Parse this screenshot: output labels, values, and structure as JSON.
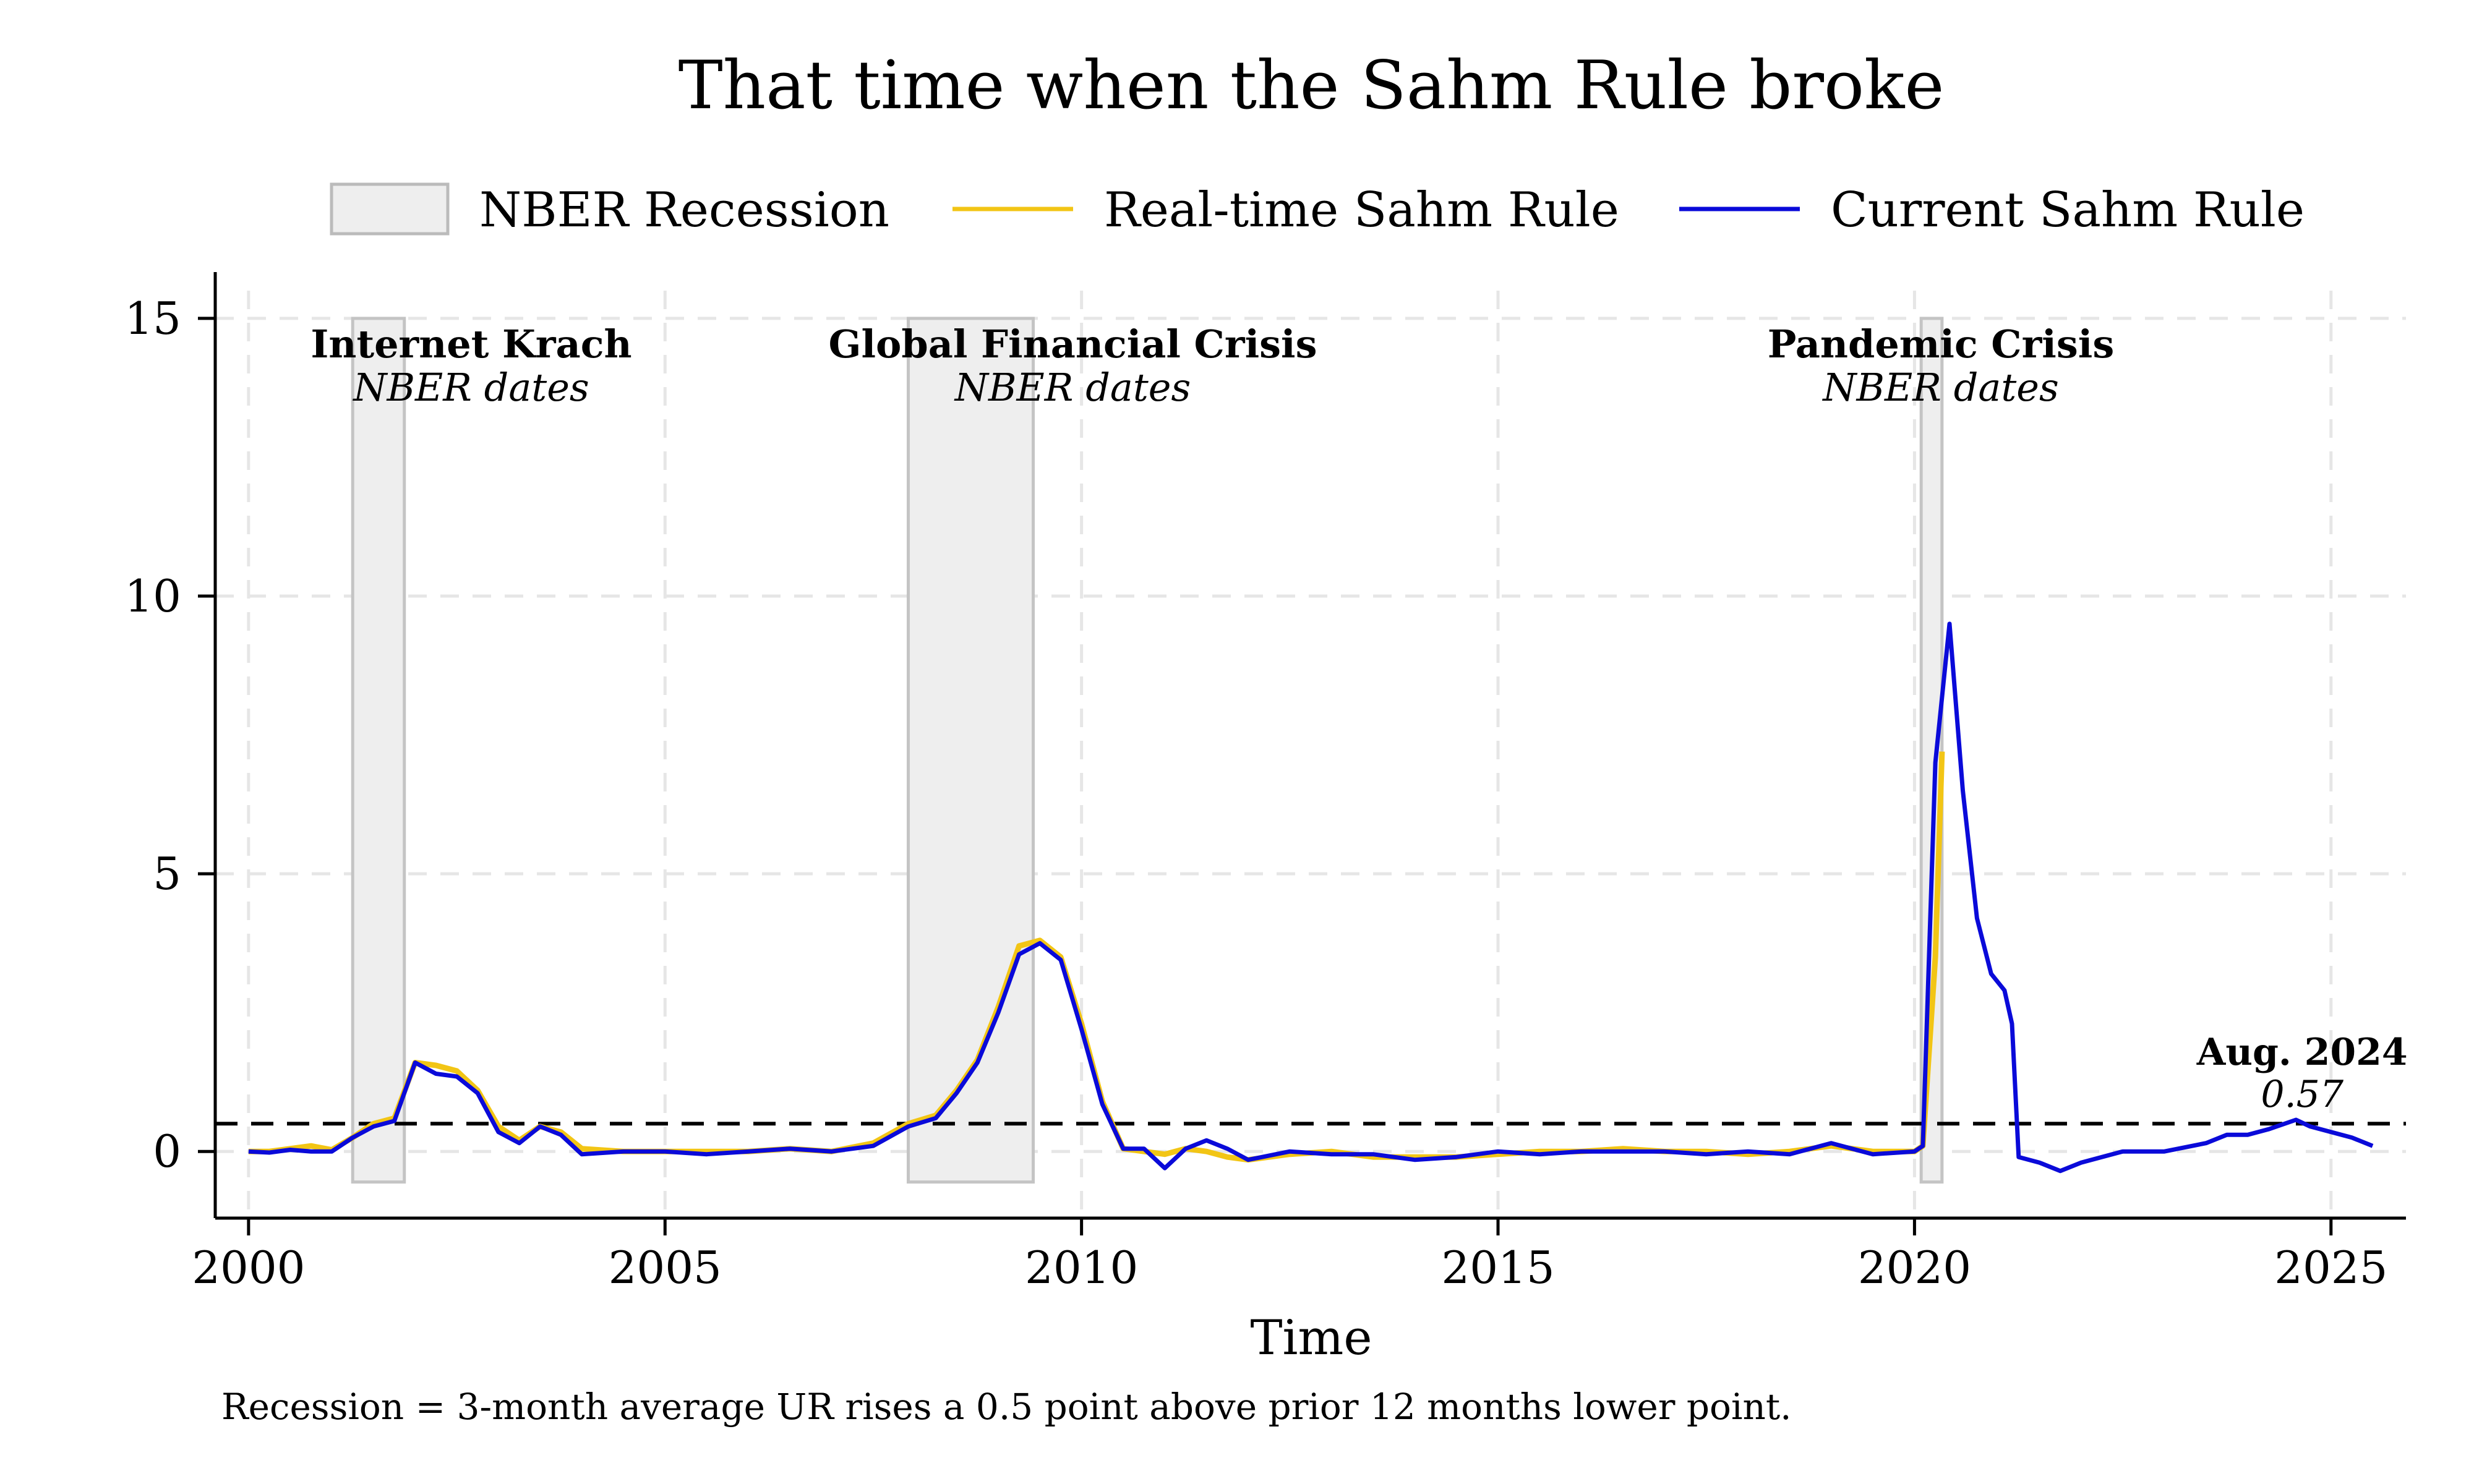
{
  "chart_data": {
    "type": "line",
    "title": "That time when the Sahm Rule broke",
    "xlabel": "Time",
    "ylabel": "",
    "xlim": [
      1999.6,
      2025.9
    ],
    "ylim": [
      -1.2,
      15.5
    ],
    "x_ticks": [
      2000,
      2005,
      2010,
      2015,
      2020,
      2025
    ],
    "y_ticks": [
      0,
      5,
      10,
      15
    ],
    "grid": true,
    "legend": {
      "placement": "top",
      "items": [
        {
          "label": "NBER Recession",
          "kind": "box",
          "color": "#eeeeee",
          "stroke": "#bbbbbb"
        },
        {
          "label": "Real-time Sahm Rule",
          "kind": "line",
          "color": "#f2c515"
        },
        {
          "label": "Current Sahm Rule",
          "kind": "line",
          "color": "#0a0ad9"
        }
      ]
    },
    "threshold": 0.5,
    "recessions": [
      {
        "start": 2001.25,
        "end": 2001.87,
        "name": "Internet Krach",
        "sub": "NBER dates"
      },
      {
        "start": 2007.92,
        "end": 2009.42,
        "name": "Global Financial Crisis",
        "sub": "NBER dates"
      },
      {
        "start": 2020.08,
        "end": 2020.33,
        "name": "Pandemic Crisis",
        "sub": "NBER dates"
      }
    ],
    "annotation": {
      "label": "Aug. 2024",
      "value": "0.57",
      "x": 2024.58,
      "y": 0.57
    },
    "series": [
      {
        "name": "Real-time Sahm Rule",
        "color": "#f2c515",
        "points": [
          [
            2000.0,
            0.0
          ],
          [
            2000.25,
            0.0
          ],
          [
            2000.5,
            0.05
          ],
          [
            2000.75,
            0.1
          ],
          [
            2001.0,
            0.03
          ],
          [
            2001.25,
            0.25
          ],
          [
            2001.5,
            0.5
          ],
          [
            2001.75,
            0.6
          ],
          [
            2002.0,
            1.6
          ],
          [
            2002.25,
            1.55
          ],
          [
            2002.5,
            1.45
          ],
          [
            2002.75,
            1.1
          ],
          [
            2003.0,
            0.45
          ],
          [
            2003.25,
            0.2
          ],
          [
            2003.5,
            0.45
          ],
          [
            2003.75,
            0.35
          ],
          [
            2004.0,
            0.05
          ],
          [
            2004.5,
            0.0
          ],
          [
            2005.0,
            0.0
          ],
          [
            2005.5,
            0.0
          ],
          [
            2006.0,
            0.0
          ],
          [
            2006.5,
            0.05
          ],
          [
            2007.0,
            0.0
          ],
          [
            2007.5,
            0.15
          ],
          [
            2007.92,
            0.5
          ],
          [
            2008.25,
            0.65
          ],
          [
            2008.5,
            1.1
          ],
          [
            2008.75,
            1.65
          ],
          [
            2009.0,
            2.6
          ],
          [
            2009.25,
            3.7
          ],
          [
            2009.5,
            3.8
          ],
          [
            2009.75,
            3.5
          ],
          [
            2010.0,
            2.3
          ],
          [
            2010.25,
            0.9
          ],
          [
            2010.5,
            0.05
          ],
          [
            2010.75,
            0.0
          ],
          [
            2011.0,
            -0.05
          ],
          [
            2011.25,
            0.05
          ],
          [
            2011.5,
            0.0
          ],
          [
            2011.75,
            -0.1
          ],
          [
            2012.0,
            -0.15
          ],
          [
            2012.5,
            -0.05
          ],
          [
            2013.0,
            0.0
          ],
          [
            2013.5,
            -0.1
          ],
          [
            2014.0,
            -0.1
          ],
          [
            2014.5,
            -0.1
          ],
          [
            2015.0,
            -0.05
          ],
          [
            2015.5,
            0.0
          ],
          [
            2016.0,
            0.0
          ],
          [
            2016.5,
            0.05
          ],
          [
            2017.0,
            0.0
          ],
          [
            2017.5,
            0.0
          ],
          [
            2018.0,
            -0.05
          ],
          [
            2018.5,
            0.0
          ],
          [
            2019.0,
            0.1
          ],
          [
            2019.5,
            0.0
          ],
          [
            2020.0,
            0.0
          ],
          [
            2020.1,
            0.1
          ],
          [
            2020.25,
            3.5
          ],
          [
            2020.33,
            7.2
          ]
        ]
      },
      {
        "name": "Current Sahm Rule",
        "color": "#0a0ad9",
        "points": [
          [
            2000.0,
            0.0
          ],
          [
            2000.25,
            -0.02
          ],
          [
            2000.5,
            0.03
          ],
          [
            2000.75,
            0.0
          ],
          [
            2001.0,
            0.0
          ],
          [
            2001.25,
            0.25
          ],
          [
            2001.5,
            0.45
          ],
          [
            2001.75,
            0.55
          ],
          [
            2002.0,
            1.6
          ],
          [
            2002.25,
            1.4
          ],
          [
            2002.5,
            1.35
          ],
          [
            2002.75,
            1.05
          ],
          [
            2003.0,
            0.35
          ],
          [
            2003.25,
            0.15
          ],
          [
            2003.5,
            0.45
          ],
          [
            2003.75,
            0.3
          ],
          [
            2004.0,
            -0.05
          ],
          [
            2004.5,
            0.0
          ],
          [
            2005.0,
            0.0
          ],
          [
            2005.5,
            -0.05
          ],
          [
            2006.0,
            0.0
          ],
          [
            2006.5,
            0.05
          ],
          [
            2007.0,
            0.0
          ],
          [
            2007.5,
            0.1
          ],
          [
            2007.92,
            0.45
          ],
          [
            2008.25,
            0.6
          ],
          [
            2008.5,
            1.05
          ],
          [
            2008.75,
            1.6
          ],
          [
            2009.0,
            2.5
          ],
          [
            2009.25,
            3.55
          ],
          [
            2009.5,
            3.75
          ],
          [
            2009.75,
            3.45
          ],
          [
            2010.0,
            2.2
          ],
          [
            2010.25,
            0.85
          ],
          [
            2010.5,
            0.05
          ],
          [
            2010.75,
            0.05
          ],
          [
            2011.0,
            -0.3
          ],
          [
            2011.25,
            0.05
          ],
          [
            2011.5,
            0.2
          ],
          [
            2011.75,
            0.05
          ],
          [
            2012.0,
            -0.15
          ],
          [
            2012.5,
            0.0
          ],
          [
            2013.0,
            -0.05
          ],
          [
            2013.5,
            -0.05
          ],
          [
            2014.0,
            -0.15
          ],
          [
            2014.5,
            -0.1
          ],
          [
            2015.0,
            0.0
          ],
          [
            2015.5,
            -0.05
          ],
          [
            2016.0,
            0.0
          ],
          [
            2016.5,
            0.0
          ],
          [
            2017.0,
            0.0
          ],
          [
            2017.5,
            -0.05
          ],
          [
            2018.0,
            0.0
          ],
          [
            2018.5,
            -0.05
          ],
          [
            2019.0,
            0.15
          ],
          [
            2019.5,
            -0.05
          ],
          [
            2020.0,
            0.0
          ],
          [
            2020.1,
            0.1
          ],
          [
            2020.25,
            7.0
          ],
          [
            2020.42,
            9.5
          ],
          [
            2020.58,
            6.5
          ],
          [
            2020.75,
            4.2
          ],
          [
            2020.92,
            3.2
          ],
          [
            2021.08,
            2.9
          ],
          [
            2021.17,
            2.3
          ],
          [
            2021.25,
            -0.1
          ],
          [
            2021.5,
            -0.2
          ],
          [
            2021.75,
            -0.35
          ],
          [
            2022.0,
            -0.2
          ],
          [
            2022.5,
            0.0
          ],
          [
            2023.0,
            0.0
          ],
          [
            2023.5,
            0.15
          ],
          [
            2023.75,
            0.3
          ],
          [
            2024.0,
            0.3
          ],
          [
            2024.25,
            0.4
          ],
          [
            2024.58,
            0.57
          ],
          [
            2024.75,
            0.45
          ],
          [
            2025.0,
            0.35
          ],
          [
            2025.25,
            0.25
          ],
          [
            2025.5,
            0.1
          ]
        ]
      }
    ],
    "note": "Recession = 3-month average UR rises a 0.5 point above prior 12 months lower point."
  }
}
